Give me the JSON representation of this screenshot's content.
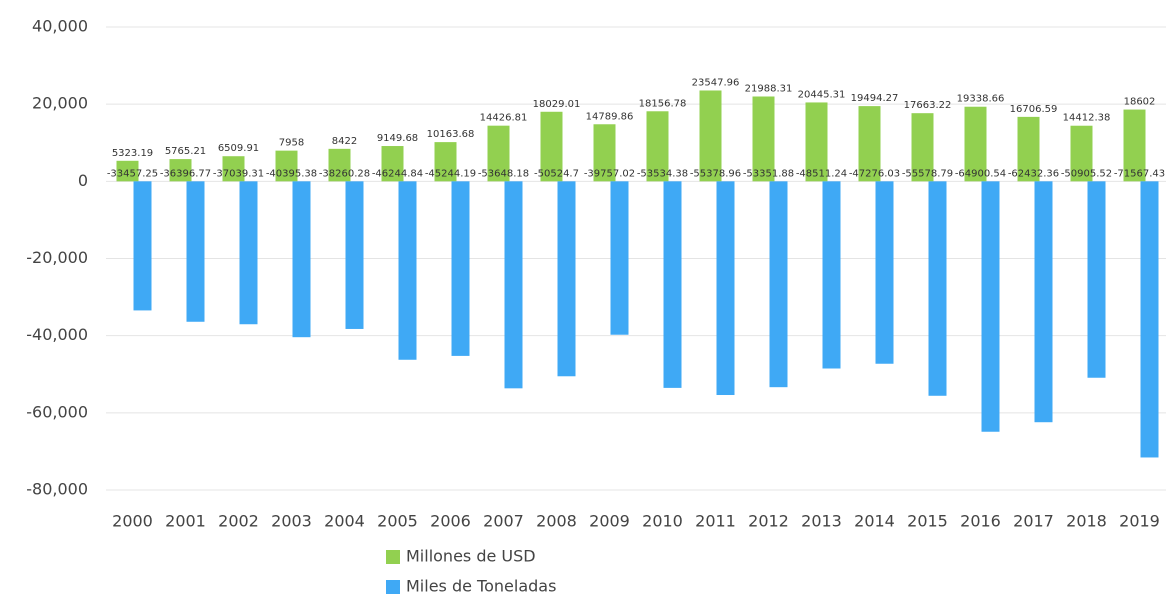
{
  "chart_data": {
    "type": "bar",
    "categories": [
      "2000",
      "2001",
      "2002",
      "2003",
      "2004",
      "2005",
      "2006",
      "2007",
      "2008",
      "2009",
      "2010",
      "2011",
      "2012",
      "2013",
      "2014",
      "2015",
      "2016",
      "2017",
      "2018",
      "2019"
    ],
    "series": [
      {
        "name": "Millones de USD",
        "color": "#92d050",
        "values": [
          5323.19,
          5765.21,
          6509.91,
          7958,
          8422,
          9149.68,
          10163.68,
          14426.81,
          18029.01,
          14789.86,
          18156.78,
          23547.96,
          21988.31,
          20445.31,
          19494.27,
          17663.22,
          19338.66,
          16706.59,
          14412.38,
          18602
        ]
      },
      {
        "name": "Miles de Toneladas",
        "color": "#3fa9f5",
        "values": [
          -33457.25,
          -36396.77,
          -37039.31,
          -40395.38,
          -38260.28,
          -46244.84,
          -45244.19,
          -53648.18,
          -50524.7,
          -39757.02,
          -53534.38,
          -55378.96,
          -53351.88,
          -48511.24,
          -47276.03,
          -55578.79,
          -64900.54,
          -62432.36,
          -50905.52,
          -71567.43
        ]
      }
    ],
    "ylim": [
      -80000,
      40000
    ],
    "yticks": [
      {
        "value": -80000,
        "label": "-80,000"
      },
      {
        "value": -60000,
        "label": "-60,000"
      },
      {
        "value": -40000,
        "label": "-40,000"
      },
      {
        "value": -20000,
        "label": "-20,000"
      },
      0,
      {
        "value": 20000,
        "label": "20,000"
      },
      {
        "value": 40000,
        "label": "40,000"
      }
    ],
    "grid": true
  }
}
